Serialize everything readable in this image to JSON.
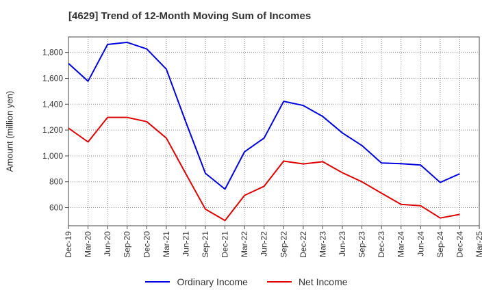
{
  "chart_data": {
    "type": "line",
    "title": "[4629]  Trend of 12-Month Moving Sum of Incomes",
    "ylabel": "Amount (million yen)",
    "xlabel": "",
    "x": [
      "Dec-19",
      "Mar-20",
      "Jun-20",
      "Sep-20",
      "Dec-20",
      "Mar-21",
      "Jun-21",
      "Sep-21",
      "Dec-21",
      "Mar-22",
      "Jun-22",
      "Sep-22",
      "Dec-22",
      "Mar-23",
      "Jun-23",
      "Sep-23",
      "Dec-23",
      "Mar-24",
      "Jun-24",
      "Sep-24",
      "Dec-24",
      "Mar-25"
    ],
    "ylim": [
      460,
      1920
    ],
    "yticks": [
      600,
      800,
      1000,
      1200,
      1400,
      1600,
      1800
    ],
    "ytick_labels": [
      "600",
      "800",
      "1,000",
      "1,200",
      "1,400",
      "1,600",
      "1,800"
    ],
    "grid": true,
    "legend_position": "bottom",
    "series": [
      {
        "name": "Ordinary Income",
        "color": "#0000dd",
        "values": [
          1715,
          1578,
          1862,
          1878,
          1827,
          1671,
          1262,
          865,
          743,
          1032,
          1138,
          1422,
          1390,
          1305,
          1178,
          1080,
          945,
          940,
          930,
          795,
          862,
          null
        ]
      },
      {
        "name": "Net Income",
        "color": "#dd0000",
        "values": [
          1215,
          1108,
          1298,
          1298,
          1265,
          1138,
          862,
          588,
          500,
          695,
          765,
          960,
          938,
          955,
          870,
          800,
          712,
          625,
          615,
          520,
          548,
          null
        ]
      }
    ]
  }
}
